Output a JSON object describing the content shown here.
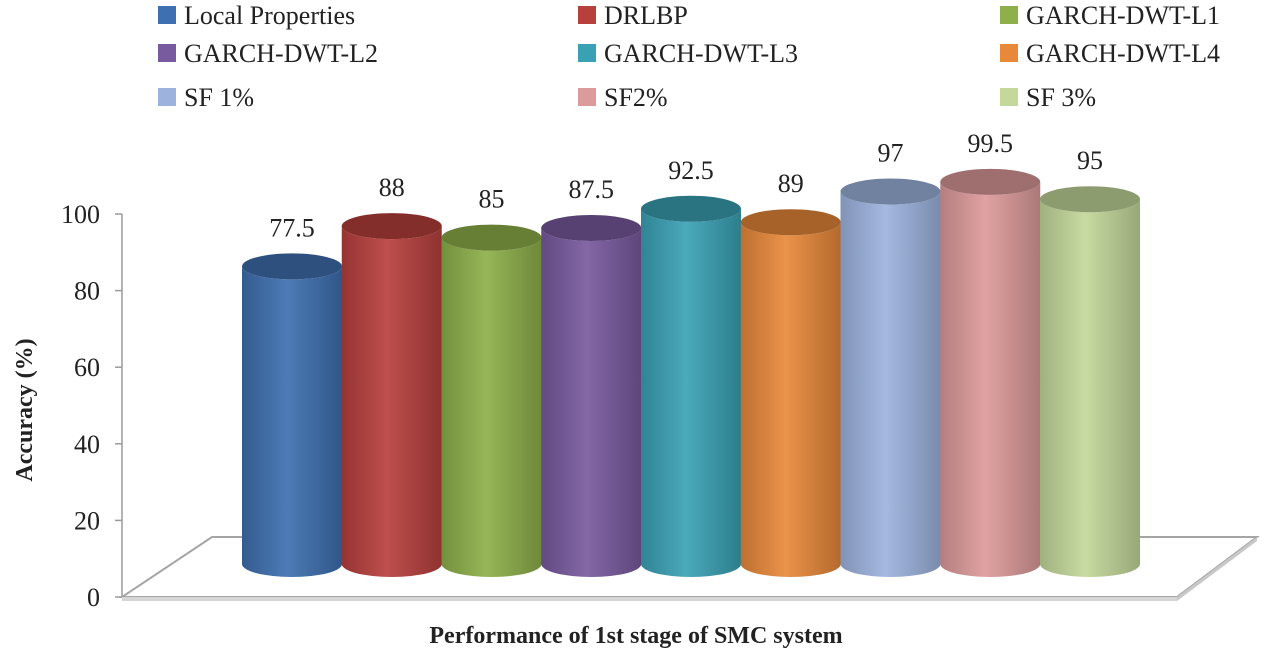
{
  "chart_data": {
    "type": "bar",
    "style": "3d-cylinder",
    "categories": [
      "Local Properties",
      "DRLBP",
      "GARCH-DWT-L1",
      "GARCH-DWT-L2",
      "GARCH-DWT-L3",
      "GARCH-DWT-L4",
      "SF 1%",
      "SF2%",
      "SF 3%"
    ],
    "series": [
      {
        "name": "Local Properties",
        "value": 77.5,
        "color": "#3E6FB0"
      },
      {
        "name": "DRLBP",
        "value": 88,
        "color": "#B7403D"
      },
      {
        "name": "GARCH-DWT-L1",
        "value": 85,
        "color": "#8DB04A"
      },
      {
        "name": "GARCH-DWT-L2",
        "value": 87.5,
        "color": "#785A9E"
      },
      {
        "name": "GARCH-DWT-L3",
        "value": 92.5,
        "color": "#3AA1B5"
      },
      {
        "name": "GARCH-DWT-L4",
        "value": 89,
        "color": "#E8883A"
      },
      {
        "name": "SF 1%",
        "value": 97,
        "color": "#9DB3DE"
      },
      {
        "name": "SF2%",
        "value": 99.5,
        "color": "#DD9A9A"
      },
      {
        "name": "SF 3%",
        "value": 95,
        "color": "#C3D89A"
      }
    ],
    "title": "",
    "xlabel": "Performance of 1st stage of SMC system",
    "ylabel": "Accuracy (%)",
    "ylim": [
      0,
      100
    ],
    "yticks": [
      0,
      20,
      40,
      60,
      80,
      100
    ],
    "legend_position": "top",
    "grid": false
  }
}
